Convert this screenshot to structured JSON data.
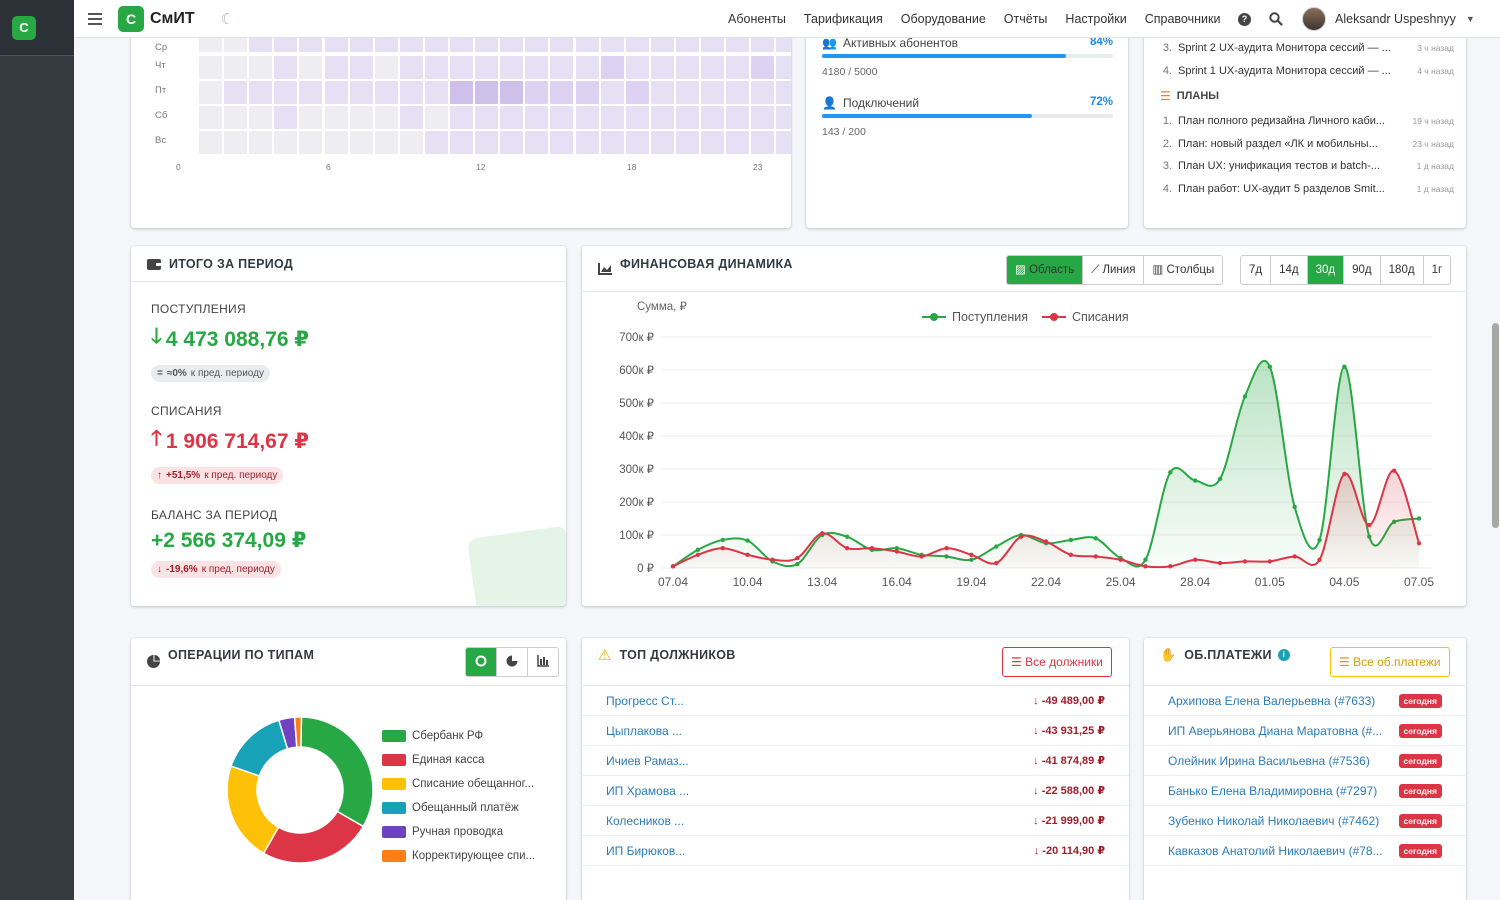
{
  "sidebar": {
    "logo_letter": "С"
  },
  "navbar": {
    "logo_letter": "С",
    "logo_text": "СмИТ",
    "links": [
      "Абоненты",
      "Тарификация",
      "Оборудование",
      "Отчёты",
      "Настройки",
      "Справочники"
    ],
    "user_name": "Aleksandr Uspeshnyy"
  },
  "heatmap": {
    "row_labels": [
      "Ср",
      "Чт",
      "Пт",
      "Сб",
      "Вс"
    ],
    "col_labels": [
      "0",
      "6",
      "12",
      "18",
      "23"
    ],
    "intensity": [
      [
        1,
        1,
        2,
        2,
        2,
        2,
        2,
        2,
        2,
        2,
        2,
        2,
        2,
        2,
        2,
        2,
        2,
        2,
        2,
        2,
        2,
        2,
        2,
        2
      ],
      [
        1,
        1,
        1,
        2,
        1,
        2,
        2,
        1,
        2,
        2,
        2,
        2,
        2,
        2,
        2,
        2,
        3,
        2,
        2,
        2,
        2,
        2,
        3,
        2
      ],
      [
        1,
        2,
        2,
        2,
        2,
        2,
        2,
        2,
        2,
        2,
        4,
        4,
        4,
        3,
        3,
        3,
        2,
        3,
        2,
        2,
        2,
        2,
        2,
        2
      ],
      [
        1,
        1,
        1,
        2,
        1,
        1,
        1,
        1,
        2,
        1,
        2,
        2,
        2,
        2,
        2,
        2,
        2,
        2,
        2,
        2,
        2,
        2,
        2,
        2
      ],
      [
        1,
        1,
        1,
        1,
        1,
        1,
        1,
        1,
        1,
        2,
        2,
        2,
        2,
        2,
        2,
        2,
        2,
        2,
        2,
        2,
        2,
        2,
        2,
        2
      ]
    ]
  },
  "progress": {
    "items": [
      {
        "label": "Активных абонентов",
        "percent_text": "84%",
        "percent": 84,
        "count": "4180 / 5000"
      },
      {
        "label": "Подключений",
        "percent_text": "72%",
        "percent": 72,
        "count": "143 / 200"
      }
    ]
  },
  "activity": {
    "sprints": [
      {
        "num": "3.",
        "text": "Sprint 2 UX-аудита Монитора сессий — ...",
        "ago": "3 ч назад"
      },
      {
        "num": "4.",
        "text": "Sprint 1 UX-аудита Монитора сессий — ...",
        "ago": "4 ч назад"
      }
    ],
    "plans_title": "ПЛАНЫ",
    "plans": [
      {
        "num": "1.",
        "text": "План полного редизайна Личного каби...",
        "ago": "19 ч назад"
      },
      {
        "num": "2.",
        "text": "План: новый раздел «ЛК и мобильны...",
        "ago": "23 ч назад"
      },
      {
        "num": "3.",
        "text": "План UX: унификация тестов и batch-...",
        "ago": "1 д назад"
      },
      {
        "num": "4.",
        "text": "План работ: UX-аудит 5 разделов Smit...",
        "ago": "1 д назад"
      }
    ]
  },
  "summary": {
    "title": "ИТОГО ЗА ПЕРИОД",
    "income_label": "ПОСТУПЛЕНИЯ",
    "income_value": "4 473 088,76 ₽",
    "income_badge_val": "≈0%",
    "income_badge_text": "к пред. периоду",
    "expense_label": "СПИСАНИЯ",
    "expense_value": "1 906 714,67 ₽",
    "expense_badge_val": "+51,5%",
    "expense_badge_text": "к пред. периоду",
    "balance_label": "БАЛАНС ЗА ПЕРИОД",
    "balance_value": "+2 566 374,09 ₽",
    "balance_badge_val": "-19,6%",
    "balance_badge_text": "к пред. периоду",
    "colors": {
      "green": "#28a745",
      "red": "#dc3545"
    }
  },
  "finance": {
    "title": "ФИНАНСОВАЯ ДИНАМИКА",
    "view_buttons": [
      "Область",
      "Линия",
      "Столбцы"
    ],
    "active_view": "Область",
    "period_buttons": [
      "7д",
      "14д",
      "30д",
      "90д",
      "180д",
      "1г"
    ],
    "active_period": "30д"
  },
  "chart_data": {
    "type": "area",
    "ylabel": "Сумма, ₽",
    "y_ticks": [
      "0 ₽",
      "100к ₽",
      "200к ₽",
      "300к ₽",
      "400к ₽",
      "500к ₽",
      "600к ₽",
      "700к ₽"
    ],
    "ylim": [
      0,
      700000
    ],
    "x_ticks": [
      "07.04",
      "10.04",
      "13.04",
      "16.04",
      "19.04",
      "22.04",
      "25.04",
      "28.04",
      "01.05",
      "04.05",
      "07.05"
    ],
    "x_dates": [
      "07.04",
      "08.04",
      "09.04",
      "10.04",
      "11.04",
      "12.04",
      "13.04",
      "14.04",
      "15.04",
      "16.04",
      "17.04",
      "18.04",
      "19.04",
      "20.04",
      "21.04",
      "22.04",
      "23.04",
      "24.04",
      "25.04",
      "26.04",
      "27.04",
      "28.04",
      "29.04",
      "30.04",
      "01.05",
      "02.05",
      "03.05",
      "04.05",
      "05.05",
      "06.05",
      "07.05"
    ],
    "legend_position": "top",
    "series": [
      {
        "name": "Поступления",
        "color": "#28a745",
        "values": [
          5000,
          55000,
          85000,
          83000,
          20000,
          12000,
          100000,
          95000,
          55000,
          60000,
          40000,
          35000,
          25000,
          65000,
          100000,
          75000,
          85000,
          90000,
          30000,
          25000,
          290000,
          265000,
          270000,
          520000,
          610000,
          185000,
          85000,
          610000,
          95000,
          140000,
          150000
        ]
      },
      {
        "name": "Списания",
        "color": "#dc3545",
        "values": [
          5000,
          40000,
          60000,
          40000,
          25000,
          30000,
          105000,
          60000,
          60000,
          50000,
          35000,
          60000,
          40000,
          15000,
          95000,
          80000,
          40000,
          35000,
          25000,
          5000,
          5000,
          25000,
          15000,
          20000,
          20000,
          35000,
          25000,
          285000,
          130000,
          295000,
          75000
        ]
      }
    ]
  },
  "ops": {
    "title": "ОПЕРАЦИИ ПО ТИПАМ",
    "legend": [
      {
        "name": "Сбербанк РФ",
        "color": "#28a745",
        "value": 33
      },
      {
        "name": "Единая касса",
        "color": "#dc3545",
        "value": 25
      },
      {
        "name": "Списание обещанног...",
        "color": "#ffc107",
        "value": 22
      },
      {
        "name": "Обещанный платёж",
        "color": "#17a2b8",
        "value": 15
      },
      {
        "name": "Ручная проводка",
        "color": "#6f42c1",
        "value": 3.5
      },
      {
        "name": "Корректирующее спи...",
        "color": "#fd7e14",
        "value": 1.5
      }
    ]
  },
  "debtors": {
    "title": "ТОП ДОЛЖНИКОВ",
    "button": "Все должники",
    "rows": [
      {
        "name": "Прогресс Ст...",
        "amount": "-49 489,00 ₽"
      },
      {
        "name": "Цыплакова ...",
        "amount": "-43 931,25 ₽"
      },
      {
        "name": "Ичиев Рамаз...",
        "amount": "-41 874,89 ₽"
      },
      {
        "name": "ИП Храмова ...",
        "amount": "-22 588,00 ₽"
      },
      {
        "name": "Колесников ...",
        "amount": "-21 999,00 ₽"
      },
      {
        "name": "ИП Бирюков...",
        "amount": "-20 114,90 ₽"
      }
    ]
  },
  "promised": {
    "title": "ОБ.ПЛАТЕЖИ",
    "button": "Все об.платежи",
    "rows": [
      {
        "name": "Архипова Елена Валерьевна (#7633)",
        "badge": "сегодня"
      },
      {
        "name": "ИП Аверьянова Диана Маратовна (#...",
        "badge": "сегодня"
      },
      {
        "name": "Олейник Ирина Васильевна (#7536)",
        "badge": "сегодня"
      },
      {
        "name": "Банько Елена Владимировна (#7297)",
        "badge": "сегодня"
      },
      {
        "name": "Зубенко Николай Николаевич (#7462)",
        "badge": "сегодня"
      },
      {
        "name": "Кавказов Анатолий Николаевич (#78...",
        "badge": "сегодня"
      }
    ]
  }
}
